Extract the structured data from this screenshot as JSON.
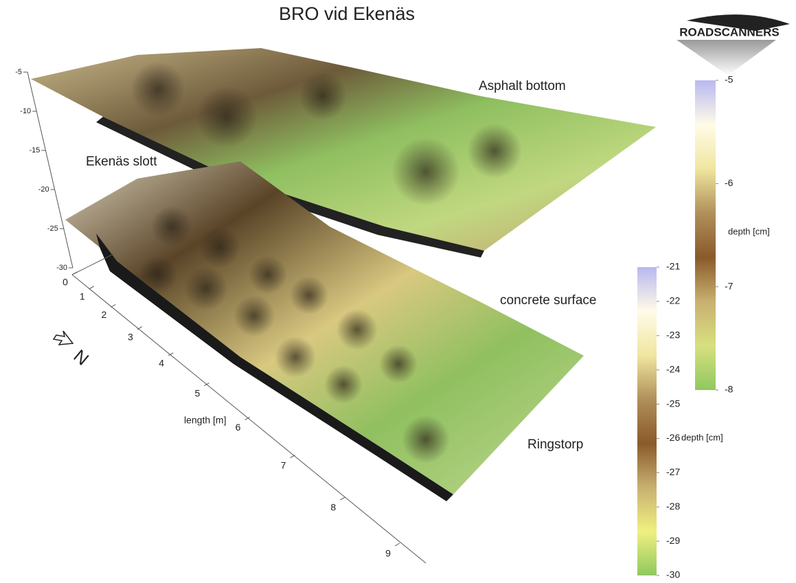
{
  "chart_data": {
    "type": "surface",
    "title": "BRO vid Ekenäs",
    "logo": "ROADSCANNERS",
    "north_label": "N",
    "annotations": [
      "Asphalt bottom",
      "Ekenäs slott",
      "concrete surface",
      "Ringstorp"
    ],
    "x_label": "length [m]",
    "xlim": [
      0,
      9
    ],
    "xticks": [
      0,
      1,
      2,
      3,
      4,
      5,
      6,
      7,
      8,
      9
    ],
    "zlim": [
      -30,
      -5
    ],
    "zticks": [
      -5,
      -10,
      -15,
      -20,
      -25,
      -30
    ],
    "colorbars": [
      {
        "label": "depth [cm]",
        "lim": [
          -8,
          -5
        ],
        "ticks": [
          -5,
          -6,
          -7,
          -8
        ],
        "colors": [
          "#b8b8f0",
          "#fffbe8",
          "#f0e6a0",
          "#b0905a",
          "#8a5a2a",
          "#c8b070",
          "#d8e080",
          "#90c860"
        ]
      },
      {
        "label": "depth [cm]",
        "lim": [
          -30,
          -21
        ],
        "ticks": [
          -21,
          -22,
          -23,
          -24,
          -25,
          -26,
          -27,
          -28,
          -29,
          -30
        ],
        "colors": [
          "#b8b8f0",
          "#fffbe8",
          "#f0e6a0",
          "#b0905a",
          "#8a5a2a",
          "#c8b070",
          "#f0f080",
          "#90c860"
        ]
      }
    ]
  }
}
